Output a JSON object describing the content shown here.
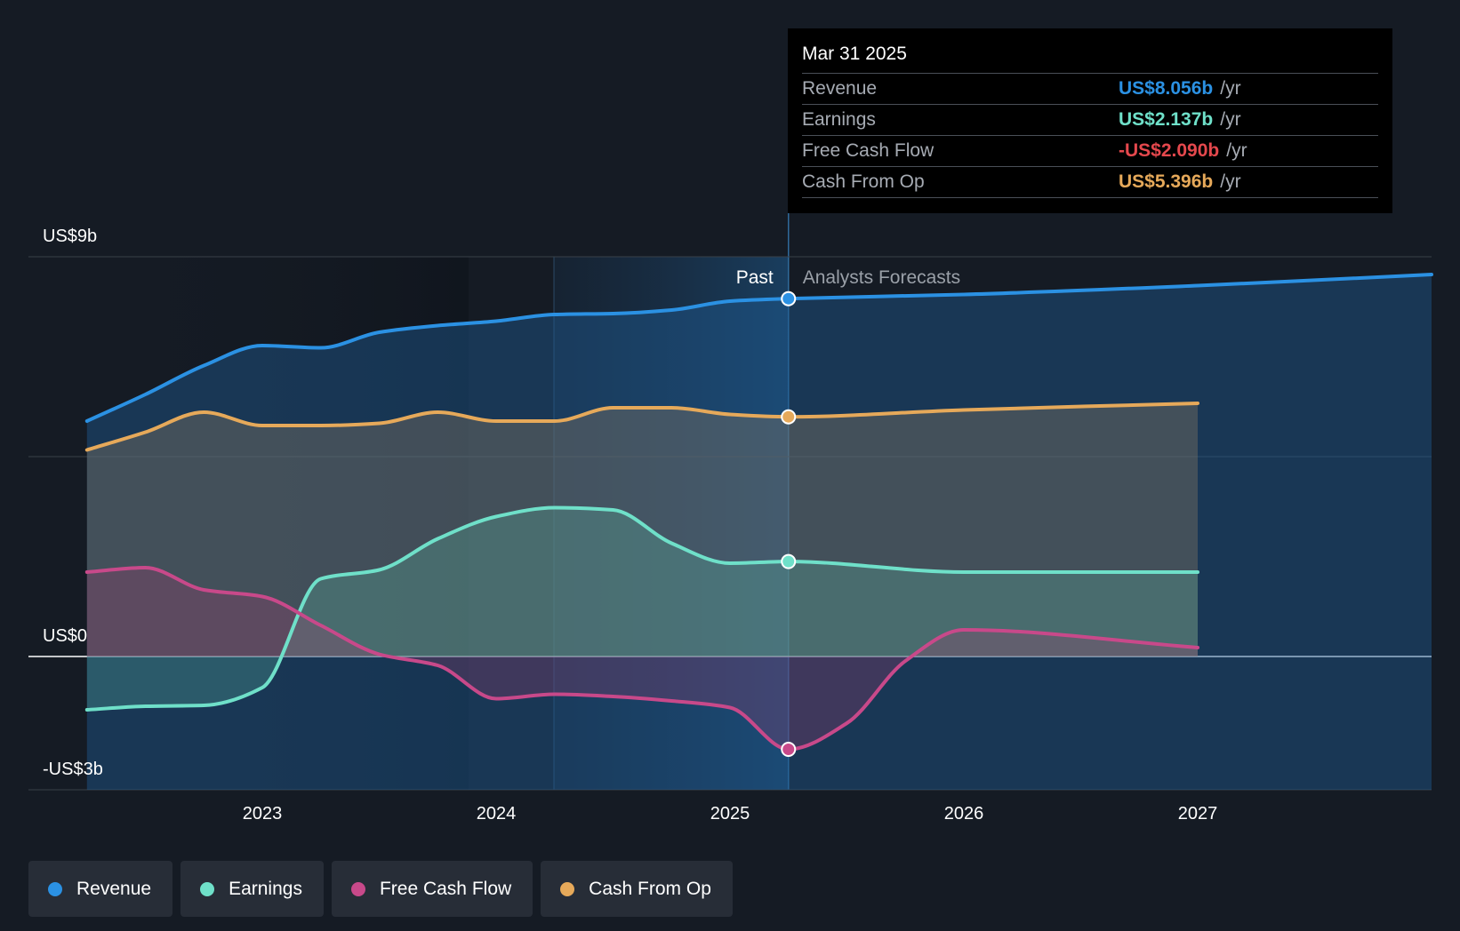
{
  "chart_data": {
    "type": "line",
    "y_axis_labels": [
      "US$9b",
      "US$0",
      "-US$3b"
    ],
    "ylim": [
      -3,
      9
    ],
    "x_tick_labels": [
      "2023",
      "2024",
      "2025",
      "2026",
      "2027"
    ],
    "section_labels": {
      "past": "Past",
      "forecast": "Analysts Forecasts"
    },
    "split_date": 2025.25,
    "series": [
      {
        "name": "Revenue",
        "color": "#2b91e3",
        "area": "to_bottom",
        "points": [
          [
            2022.25,
            5.3
          ],
          [
            2022.5,
            5.9
          ],
          [
            2022.75,
            6.55
          ],
          [
            2023.0,
            7.0
          ],
          [
            2023.25,
            6.95
          ],
          [
            2023.5,
            7.3
          ],
          [
            2023.75,
            7.45
          ],
          [
            2024.0,
            7.55
          ],
          [
            2024.25,
            7.7
          ],
          [
            2024.5,
            7.72
          ],
          [
            2024.75,
            7.8
          ],
          [
            2025.0,
            8.0
          ],
          [
            2025.25,
            8.056
          ],
          [
            2026.0,
            8.15
          ],
          [
            2027.0,
            8.35
          ],
          [
            2028.0,
            8.6
          ]
        ]
      },
      {
        "name": "Cash From Op",
        "color": "#e6a95a",
        "area": "to_zero",
        "points": [
          [
            2022.25,
            4.65
          ],
          [
            2022.5,
            5.05
          ],
          [
            2022.75,
            5.5
          ],
          [
            2023.0,
            5.2
          ],
          [
            2023.25,
            5.2
          ],
          [
            2023.5,
            5.25
          ],
          [
            2023.75,
            5.5
          ],
          [
            2024.0,
            5.3
          ],
          [
            2024.25,
            5.3
          ],
          [
            2024.5,
            5.6
          ],
          [
            2024.75,
            5.6
          ],
          [
            2025.0,
            5.45
          ],
          [
            2025.25,
            5.396
          ],
          [
            2026.0,
            5.55
          ],
          [
            2027.0,
            5.7
          ]
        ]
      },
      {
        "name": "Earnings",
        "color": "#6fe0c9",
        "area": "to_zero",
        "points": [
          [
            2022.25,
            -1.2
          ],
          [
            2022.5,
            -1.12
          ],
          [
            2022.75,
            -1.1
          ],
          [
            2023.0,
            -0.7
          ],
          [
            2023.25,
            1.75
          ],
          [
            2023.5,
            1.95
          ],
          [
            2023.75,
            2.65
          ],
          [
            2024.0,
            3.15
          ],
          [
            2024.25,
            3.35
          ],
          [
            2024.5,
            3.3
          ],
          [
            2024.75,
            2.55
          ],
          [
            2025.0,
            2.1
          ],
          [
            2025.25,
            2.137
          ],
          [
            2026.0,
            1.9
          ],
          [
            2027.0,
            1.9
          ]
        ]
      },
      {
        "name": "Free Cash Flow",
        "color": "#c8498a",
        "area": "to_zero",
        "points": [
          [
            2022.25,
            1.9
          ],
          [
            2022.5,
            2.0
          ],
          [
            2022.75,
            1.5
          ],
          [
            2023.0,
            1.35
          ],
          [
            2023.25,
            0.7
          ],
          [
            2023.5,
            0.05
          ],
          [
            2023.75,
            -0.2
          ],
          [
            2024.0,
            -0.95
          ],
          [
            2024.25,
            -0.85
          ],
          [
            2024.5,
            -0.9
          ],
          [
            2024.75,
            -1.0
          ],
          [
            2025.0,
            -1.15
          ],
          [
            2025.25,
            -2.09
          ],
          [
            2025.5,
            -1.5
          ],
          [
            2025.75,
            -0.1
          ],
          [
            2026.0,
            0.6
          ],
          [
            2027.0,
            0.2
          ]
        ]
      }
    ]
  },
  "tooltip": {
    "date": "Mar 31 2025",
    "rows": [
      {
        "label": "Revenue",
        "value": "US$8.056b",
        "unit": "/yr",
        "color": "#2b91e3"
      },
      {
        "label": "Earnings",
        "value": "US$2.137b",
        "unit": "/yr",
        "color": "#6fe0c9"
      },
      {
        "label": "Free Cash Flow",
        "value": "-US$2.090b",
        "unit": "/yr",
        "color": "#e5484d"
      },
      {
        "label": "Cash From Op",
        "value": "US$5.396b",
        "unit": "/yr",
        "color": "#e6a95a"
      }
    ]
  },
  "legend": [
    {
      "label": "Revenue",
      "color": "#2b91e3"
    },
    {
      "label": "Earnings",
      "color": "#6fe0c9"
    },
    {
      "label": "Free Cash Flow",
      "color": "#c8498a"
    },
    {
      "label": "Cash From Op",
      "color": "#e6a95a"
    }
  ]
}
